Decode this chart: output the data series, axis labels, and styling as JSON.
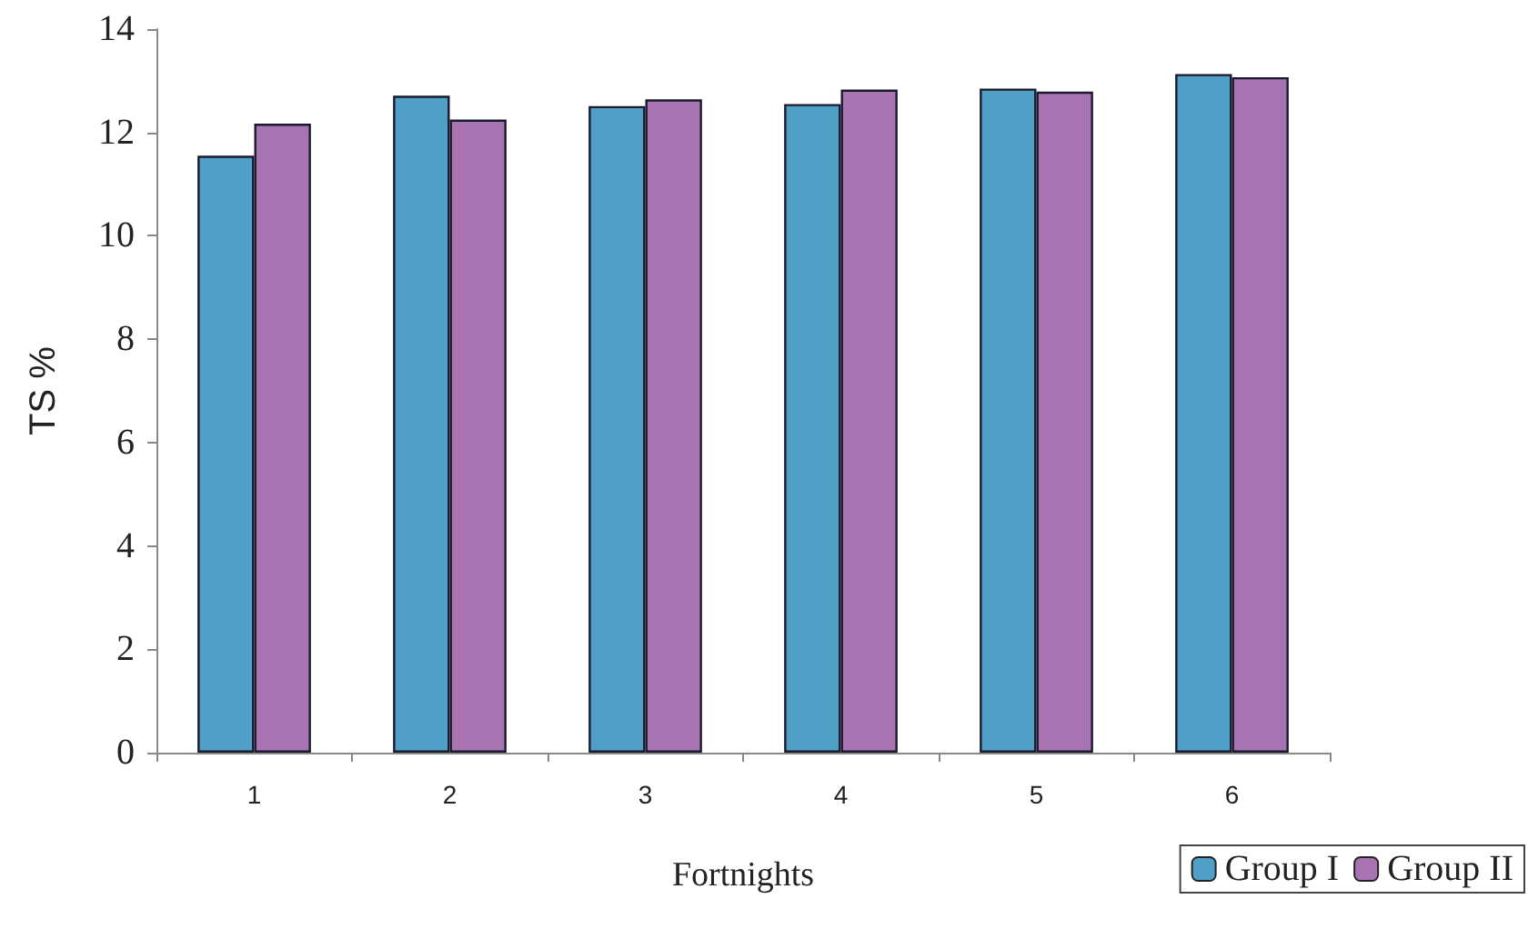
{
  "chart_data": {
    "type": "bar",
    "xlabel": "Fortnights",
    "ylabel": "TS %",
    "categories": [
      "1",
      "2",
      "3",
      "4",
      "5",
      "6"
    ],
    "series": [
      {
        "name": "Group I",
        "color": "#4f9fc6",
        "values": [
          11.55,
          12.71,
          12.51,
          12.55,
          12.85,
          13.13
        ]
      },
      {
        "name": "Group II",
        "color": "#a774b1",
        "values": [
          12.17,
          12.25,
          12.64,
          12.83,
          12.79,
          13.07
        ]
      }
    ],
    "ylim": [
      0,
      14
    ],
    "yticks": [
      0,
      2,
      4,
      6,
      8,
      10,
      12,
      14
    ],
    "grid": false,
    "legend": "bottom right"
  }
}
